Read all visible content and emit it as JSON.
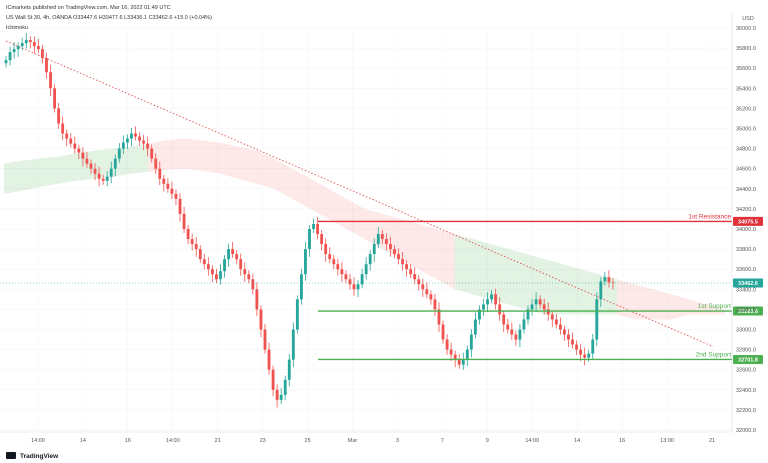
{
  "header": {
    "published_line": "ICmarkets published on TradingView.com, Mar 16, 2022 01:49 UTC",
    "symbol_line": "US Wall St 30, 4h, OANDA  O33447.6  H33477.6  L33436.1  C33462.6  +15.0 (+0.04%)",
    "indicator": "Ichimoku"
  },
  "brand": {
    "name": "TradingView"
  },
  "chart_data": {
    "type": "candlestick",
    "currency": "USD",
    "ylim": [
      32000,
      36000
    ],
    "y_ticks": [
      "36000.0",
      "35800.0",
      "35600.0",
      "35400.0",
      "35200.0",
      "35000.0",
      "34800.0",
      "34600.0",
      "34400.0",
      "34200.0",
      "34000.0",
      "33800.0",
      "33600.0",
      "33400.0",
      "33200.0",
      "33000.0",
      "32800.0",
      "32600.0",
      "32400.0",
      "32200.0",
      "32000.0"
    ],
    "x_ticks": [
      "14:00",
      "14",
      "16",
      "14:00",
      "21",
      "23",
      "25",
      "Mar",
      "3",
      "7",
      "9",
      "14:00",
      "14",
      "16",
      "13:00",
      "21"
    ],
    "levels": [
      {
        "label": "1st Resistance",
        "value": 34075.5,
        "badge": "34075.5",
        "color": "#e0303a"
      },
      {
        "label": "1st Support",
        "value": 33183.6,
        "badge": "33183.6",
        "color": "#4caf50"
      },
      {
        "label": "2nd Support",
        "value": 32701.8,
        "badge": "32701.8",
        "color": "#4caf50"
      }
    ],
    "current_price": {
      "value": 33462.6,
      "badge": "33462.6"
    },
    "trendline": {
      "from": [
        0,
        35870
      ],
      "to": [
        185,
        32830
      ]
    },
    "series": [
      {
        "name": "Close",
        "values": [
          35680,
          35760,
          35790,
          35820,
          35850,
          35880,
          35860,
          35820,
          35790,
          35700,
          35560,
          35400,
          35200,
          35050,
          34950,
          34900,
          34850,
          34800,
          34760,
          34700,
          34650,
          34600,
          34550,
          34500,
          34480,
          34520,
          34600,
          34700,
          34800,
          34860,
          34900,
          34950,
          34920,
          34880,
          34850,
          34800,
          34700,
          34600,
          34500,
          34450,
          34400,
          34350,
          34300,
          34150,
          34000,
          33900,
          33850,
          33800,
          33700,
          33650,
          33600,
          33550,
          33500,
          33580,
          33700,
          33800,
          33750,
          33700,
          33600,
          33550,
          33500,
          33400,
          33200,
          33000,
          32800,
          32600,
          32400,
          32300,
          32350,
          32500,
          32700,
          33000,
          33300,
          33550,
          33800,
          34000,
          34050,
          33950,
          33850,
          33750,
          33700,
          33650,
          33600,
          33550,
          33500,
          33450,
          33400,
          33450,
          33550,
          33650,
          33750,
          33850,
          33950,
          33900,
          33850,
          33800,
          33750,
          33700,
          33650,
          33600,
          33550,
          33500,
          33450,
          33400,
          33350,
          33300,
          33200,
          33050,
          32900,
          32800,
          32750,
          32700,
          32650,
          32700,
          32800,
          32950,
          33100,
          33200,
          33250,
          33300,
          33350,
          33250,
          33150,
          33050,
          33000,
          32950,
          32900,
          33000,
          33100,
          33200,
          33250,
          33300,
          33250,
          33200,
          33150,
          33100,
          33050,
          33000,
          32950,
          32900,
          32850,
          32800,
          32750,
          32720,
          32760,
          32900,
          33300,
          33480,
          33520,
          33470,
          33462.6
        ]
      }
    ],
    "ichimoku_cloud": {
      "upper": [
        34650,
        34680,
        34700,
        34720,
        34750,
        34780,
        34800,
        34820,
        34850,
        34880,
        34900,
        34880,
        34860,
        34820,
        34780,
        34700,
        34600,
        34500,
        34400,
        34300,
        34200,
        34150,
        34100,
        34050,
        34000,
        33950,
        33900,
        33850,
        33800,
        33750,
        33700,
        33650,
        33600,
        33550,
        33500,
        33450,
        33400,
        33350,
        33300,
        33250,
        33200
      ],
      "lower": [
        34350,
        34380,
        34420,
        34450,
        34480,
        34500,
        34520,
        34550,
        34570,
        34590,
        34600,
        34580,
        34550,
        34500,
        34450,
        34400,
        34300,
        34200,
        34100,
        34000,
        33900,
        33800,
        33700,
        33600,
        33500,
        33400,
        33350,
        33300,
        33250,
        33200,
        33150,
        33150,
        33150,
        33150,
        33150,
        33100,
        33100,
        33100,
        33150,
        33150,
        33150
      ]
    }
  }
}
